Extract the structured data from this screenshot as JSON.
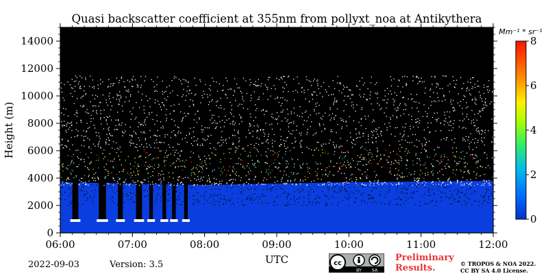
{
  "chart_data": {
    "type": "heatmap",
    "title": "Quasi backscatter coefficient at 355nm from pollyxt_noa at Antikythera",
    "xlabel": "UTC",
    "ylabel": "Height (m)",
    "x_ticks": [
      "06:00",
      "07:00",
      "08:00",
      "09:00",
      "10:00",
      "11:00",
      "12:00"
    ],
    "y_ticks": [
      0,
      2000,
      4000,
      6000,
      8000,
      10000,
      12000,
      14000
    ],
    "xlim": [
      "06:00",
      "12:00"
    ],
    "ylim": [
      0,
      15000
    ],
    "colorbar": {
      "label": "Mm⁻¹ * sr⁻¹",
      "ticks": [
        0,
        2,
        4,
        6,
        8
      ],
      "range": [
        0,
        8
      ],
      "colormap": "jet"
    },
    "boundary_layer_top": [
      {
        "time": "06:00",
        "height": 3700
      },
      {
        "time": "08:00",
        "height": 3500
      },
      {
        "time": "10:00",
        "height": 3700
      },
      {
        "time": "12:00",
        "height": 3800
      }
    ],
    "aerosol_layer": {
      "bottom": 4000,
      "top": 6200,
      "max_value": 8
    },
    "cloud_events": [
      {
        "start": "06:10",
        "end": "06:15"
      },
      {
        "start": "06:32",
        "end": "06:38"
      },
      {
        "start": "06:48",
        "end": "06:52"
      },
      {
        "start": "07:03",
        "end": "07:08"
      },
      {
        "start": "07:14",
        "end": "07:17"
      },
      {
        "start": "07:25",
        "end": "07:28"
      },
      {
        "start": "07:33",
        "end": "07:36"
      },
      {
        "start": "07:43",
        "end": "07:46"
      }
    ]
  },
  "footer": {
    "date": "2022-09-03",
    "version": "Version: 3.5",
    "preliminary_line1": "Preliminary",
    "preliminary_line2": "Results.",
    "copyright_line1": "© TROPOS & NOA 2022.",
    "copyright_line2": "CC BY SA 4.0 License."
  },
  "license_badge": {
    "text": "cc",
    "labels": [
      "BY",
      "SA"
    ]
  },
  "colors": {
    "background": "#000000",
    "boundary_layer": "#0a3ede",
    "colorbar_low": "#0000aa",
    "colorbar_high": "#ff1a00"
  }
}
